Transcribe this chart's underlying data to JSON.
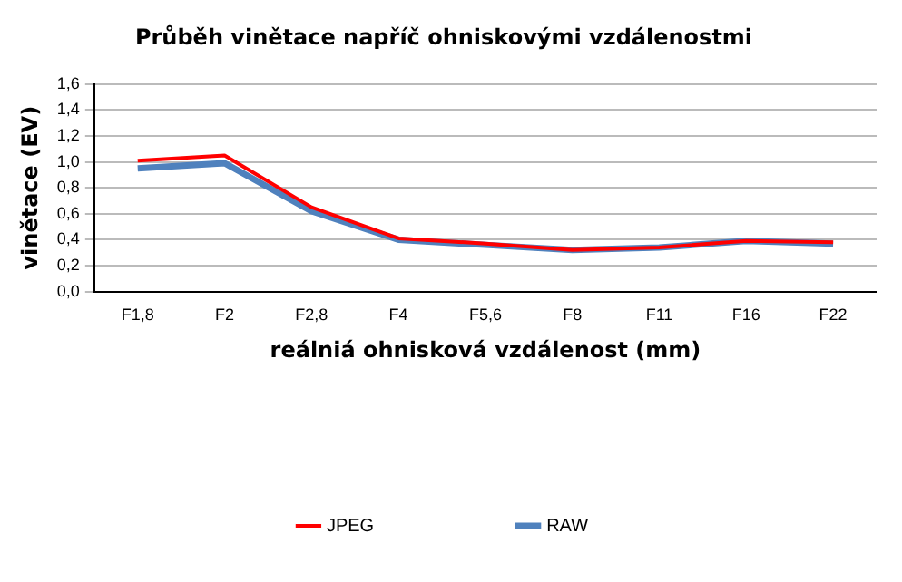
{
  "chart_data": {
    "type": "line",
    "title": "Průběh vinětace napříč ohniskovými vzdálenostmi",
    "xlabel": "reálniá ohnisková vzdálenost (mm)",
    "ylabel": "vinětace (EV)",
    "categories": [
      "F1,8",
      "F2",
      "F2,8",
      "F4",
      "F5,6",
      "F8",
      "F11",
      "F16",
      "F22"
    ],
    "series": [
      {
        "name": "JPEG",
        "color": "#ff0000",
        "values": [
          1.01,
          1.05,
          0.65,
          0.41,
          0.37,
          0.32,
          0.34,
          0.39,
          0.38
        ]
      },
      {
        "name": "RAW",
        "color": "#4f81bd",
        "values": [
          0.95,
          0.99,
          0.62,
          0.4,
          0.36,
          0.32,
          0.34,
          0.39,
          0.37
        ]
      }
    ],
    "ylim": [
      0,
      1.6
    ],
    "yticks": [
      {
        "value": 0,
        "label": "0,0"
      },
      {
        "value": 0.2,
        "label": "0,2"
      },
      {
        "value": 0.4,
        "label": "0,4"
      },
      {
        "value": 0.6,
        "label": "0,6"
      },
      {
        "value": 0.8,
        "label": "0,8"
      },
      {
        "value": 1.0,
        "label": "1,0"
      },
      {
        "value": 1.2,
        "label": "1,2"
      },
      {
        "value": 1.4,
        "label": "1,4"
      },
      {
        "value": 1.6,
        "label": "1,6"
      }
    ],
    "grid": "y",
    "legend": "bottom",
    "marker": "none",
    "line_style": "solid"
  }
}
